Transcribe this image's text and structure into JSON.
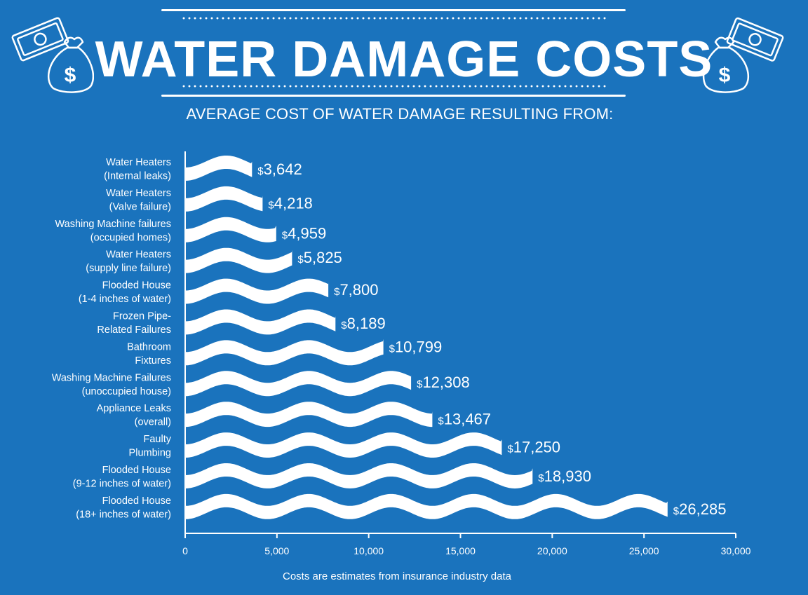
{
  "header": {
    "title": "WATER DAMAGE COSTS",
    "subtitle": "AVERAGE COST OF WATER DAMAGE RESULTING FROM:",
    "footnote": "Costs are estimates from insurance industry data"
  },
  "icons": {
    "left": "money-bag-icon",
    "right": "money-bag-icon"
  },
  "colors": {
    "background": "#1a73bd",
    "bars": "#ffffff"
  },
  "chart_data": {
    "type": "bar",
    "orientation": "horizontal",
    "currency_prefix": "$",
    "categories": [
      [
        "Water Heaters",
        "(Internal leaks)"
      ],
      [
        "Water Heaters",
        "(Valve failure)"
      ],
      [
        "Washing Machine failures",
        "(occupied homes)"
      ],
      [
        "Water Heaters",
        "(supply line failure)"
      ],
      [
        "Flooded House",
        "(1-4 inches of water)"
      ],
      [
        "Frozen Pipe-",
        "Related Failures"
      ],
      [
        "Bathroom",
        "Fixtures"
      ],
      [
        "Washing Machine Failures",
        "(unoccupied house)"
      ],
      [
        "Appliance Leaks",
        "(overall)"
      ],
      [
        "Faulty",
        "Plumbing"
      ],
      [
        "Flooded House",
        "(9-12 inches of water)"
      ],
      [
        "Flooded House",
        "(18+ inches of water)"
      ]
    ],
    "values": [
      3642,
      4218,
      4959,
      5825,
      7800,
      8189,
      10799,
      12308,
      13467,
      17250,
      18930,
      26285
    ],
    "value_labels": [
      "3,642",
      "4,218",
      "4,959",
      "5,825",
      "7,800",
      "8,189",
      "10,799",
      "12,308",
      "13,467",
      "17,250",
      "18,930",
      "26,285"
    ],
    "xlim": [
      0,
      30000
    ],
    "xticks": [
      0,
      5000,
      10000,
      15000,
      20000,
      25000,
      30000
    ],
    "xtick_labels": [
      "0",
      "5,000",
      "10,000",
      "15,000",
      "20,000",
      "25,000",
      "30,000"
    ],
    "grid": false,
    "legend": "none"
  }
}
